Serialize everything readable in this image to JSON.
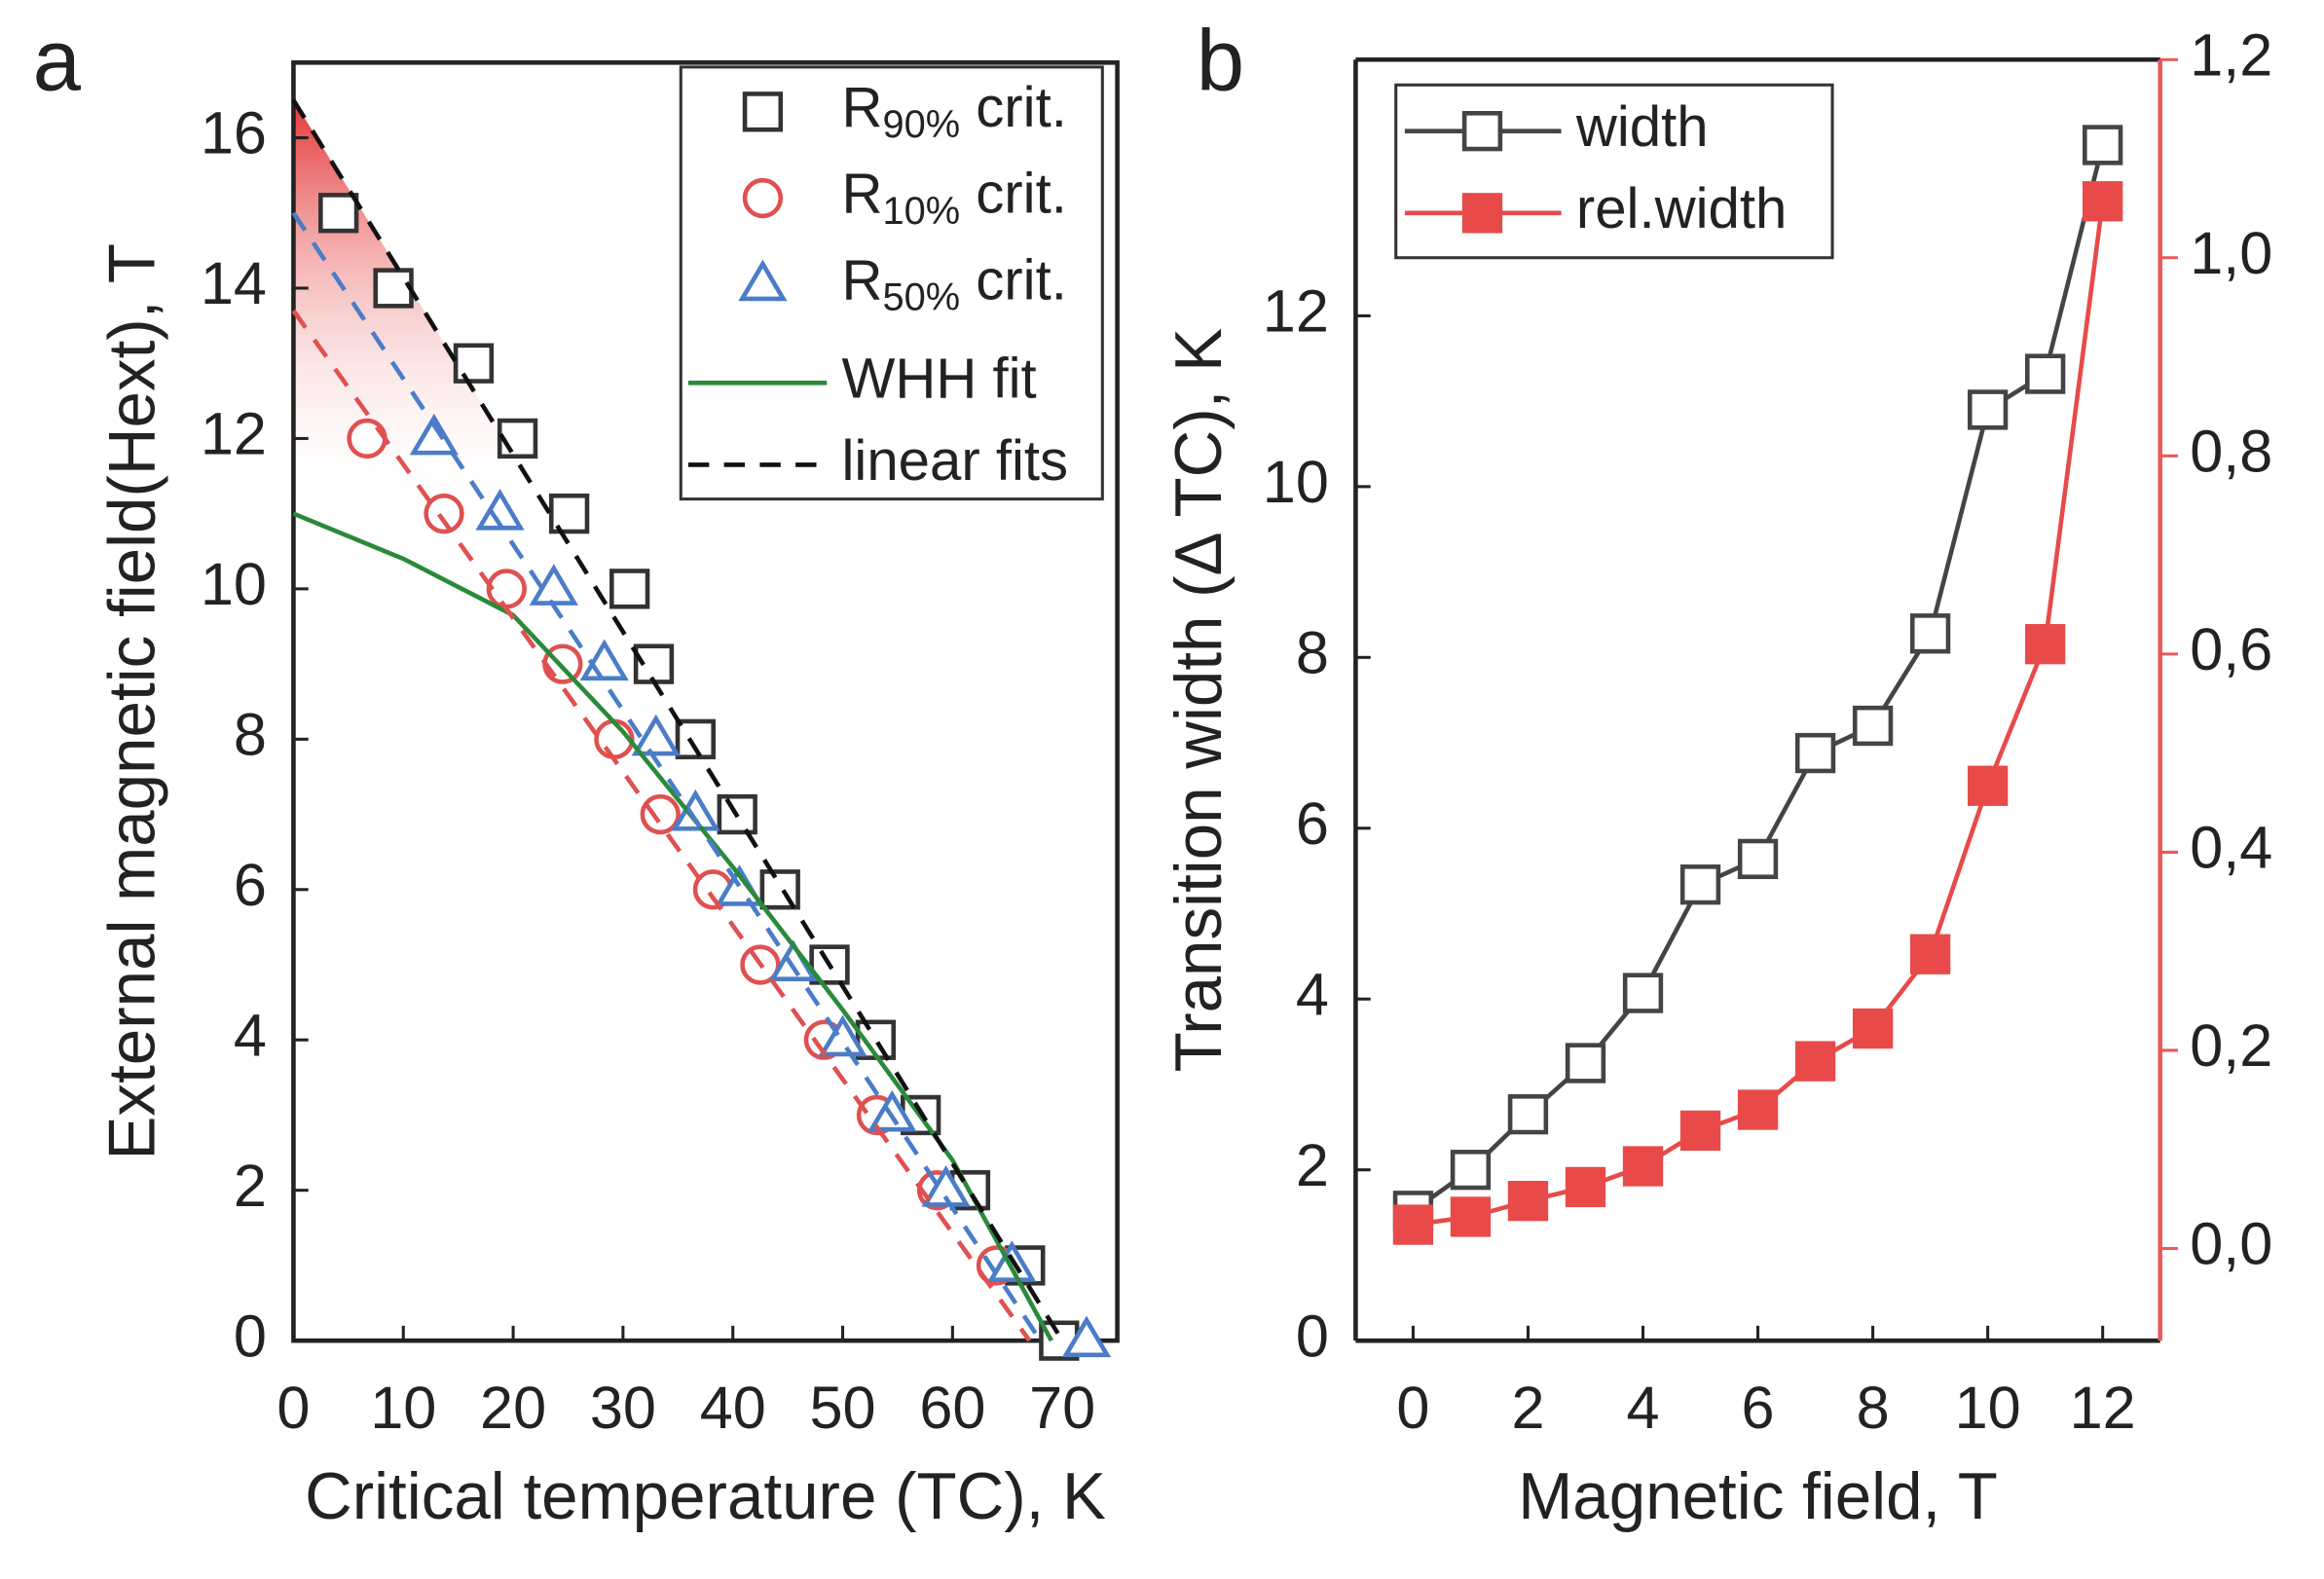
{
  "chart_data": [
    {
      "type": "scatter",
      "panel": "a",
      "xlabel": "Critical temperature (TC), K",
      "ylabel": "External magnetic field(Hext), T",
      "xlim": [
        0,
        75
      ],
      "ylim": [
        0,
        17
      ],
      "xticks": [
        0,
        10,
        20,
        30,
        40,
        50,
        60,
        70
      ],
      "yticks": [
        0,
        2,
        4,
        6,
        8,
        10,
        12,
        14,
        16
      ],
      "series": [
        {
          "name": "R90% crit.",
          "color": "#333333",
          "marker": "square",
          "line": null,
          "x": [
            4.1,
            9.1,
            16.4,
            20.4,
            25.1,
            30.6,
            32.8,
            36.6,
            40.4,
            44.3,
            48.8,
            53.0,
            57.1,
            61.6,
            66.6,
            69.7
          ],
          "values": [
            15,
            14,
            13,
            12,
            11,
            10,
            9,
            8,
            7,
            6,
            5,
            4,
            3,
            2,
            1,
            0
          ]
        },
        {
          "name": "R10% crit.",
          "color": "#e05050",
          "marker": "circle",
          "line": null,
          "x": [
            6.7,
            13.7,
            19.4,
            24.5,
            29.2,
            33.4,
            38.2,
            42.5,
            48.3,
            53.1,
            58.6,
            64.0
          ],
          "values": [
            12,
            11,
            10,
            9,
            8,
            7,
            6,
            5,
            4,
            3,
            2,
            1
          ]
        },
        {
          "name": "R50% crit.",
          "color": "#4a7cc8",
          "marker": "triangle",
          "line": null,
          "x": [
            12.8,
            18.8,
            23.7,
            28.3,
            33.0,
            36.6,
            40.6,
            45.5,
            50.0,
            54.5,
            59.4,
            65.4,
            72.2
          ],
          "values": [
            12,
            11,
            10,
            9,
            8,
            7,
            6,
            5,
            4,
            3,
            2,
            1,
            0
          ]
        },
        {
          "name": "WHH fit",
          "color": "#2a8a3a",
          "marker": null,
          "line": "solid",
          "x": [
            0,
            10,
            20,
            30,
            40,
            50,
            60,
            69
          ],
          "values": [
            11,
            10.4,
            9.65,
            8.1,
            6.3,
            4.4,
            2.4,
            0
          ]
        },
        {
          "name": "linear fits",
          "color": "#111111",
          "marker": null,
          "line": "dashed",
          "x": [
            0,
            70
          ],
          "values": [
            16.5,
            0
          ]
        },
        {
          "color": "#4a7cc8",
          "marker": null,
          "line": "dashed",
          "x": [
            0,
            68
          ],
          "values": [
            15,
            0
          ]
        },
        {
          "color": "#e05050",
          "marker": null,
          "line": "dashed",
          "x": [
            0,
            67
          ],
          "values": [
            13.7,
            0
          ]
        }
      ]
    },
    {
      "type": "line",
      "panel": "b",
      "xlabel": "Magnetic field, T",
      "ylabel": "Transition width (Δ TC), K",
      "xlim": [
        -1,
        13
      ],
      "ylim": [
        0,
        15
      ],
      "y2lim": [
        -0.093,
        1.2
      ],
      "xticks": [
        0,
        2,
        4,
        6,
        8,
        10,
        12
      ],
      "yticks": [
        0,
        2,
        4,
        6,
        8,
        10,
        12
      ],
      "y2ticks": [
        {
          "value": 0,
          "label": "0,0"
        },
        {
          "value": 0.2,
          "label": "0,2"
        },
        {
          "value": 0.4,
          "label": "0,4"
        },
        {
          "value": 0.6,
          "label": "0,6"
        },
        {
          "value": 0.8,
          "label": "0,8"
        },
        {
          "value": 1.0,
          "label": "1,0"
        },
        {
          "value": 1.2,
          "label": "1,2"
        }
      ],
      "y2color": "#e85a5a",
      "series": [
        {
          "name": "width",
          "color": "#444444",
          "marker": "square",
          "line": "solid",
          "x": [
            0,
            1,
            2,
            3,
            4,
            5,
            6,
            7,
            8,
            9,
            10,
            11,
            12
          ],
          "values": [
            1.52,
            2.0,
            2.65,
            3.25,
            4.07,
            5.34,
            5.64,
            6.88,
            7.2,
            8.28,
            10.9,
            11.32,
            14.0
          ]
        },
        {
          "name": "rel.width",
          "color": "#e84a4a",
          "marker": "filled-square",
          "line": "solid",
          "axis": "y2",
          "x": [
            0,
            1,
            2,
            3,
            4,
            5,
            6,
            7,
            8,
            9,
            10,
            11,
            12
          ],
          "values": [
            0.024,
            0.032,
            0.048,
            0.062,
            0.083,
            0.119,
            0.14,
            0.189,
            0.222,
            0.297,
            0.467,
            0.61,
            1.057
          ]
        }
      ]
    }
  ]
}
